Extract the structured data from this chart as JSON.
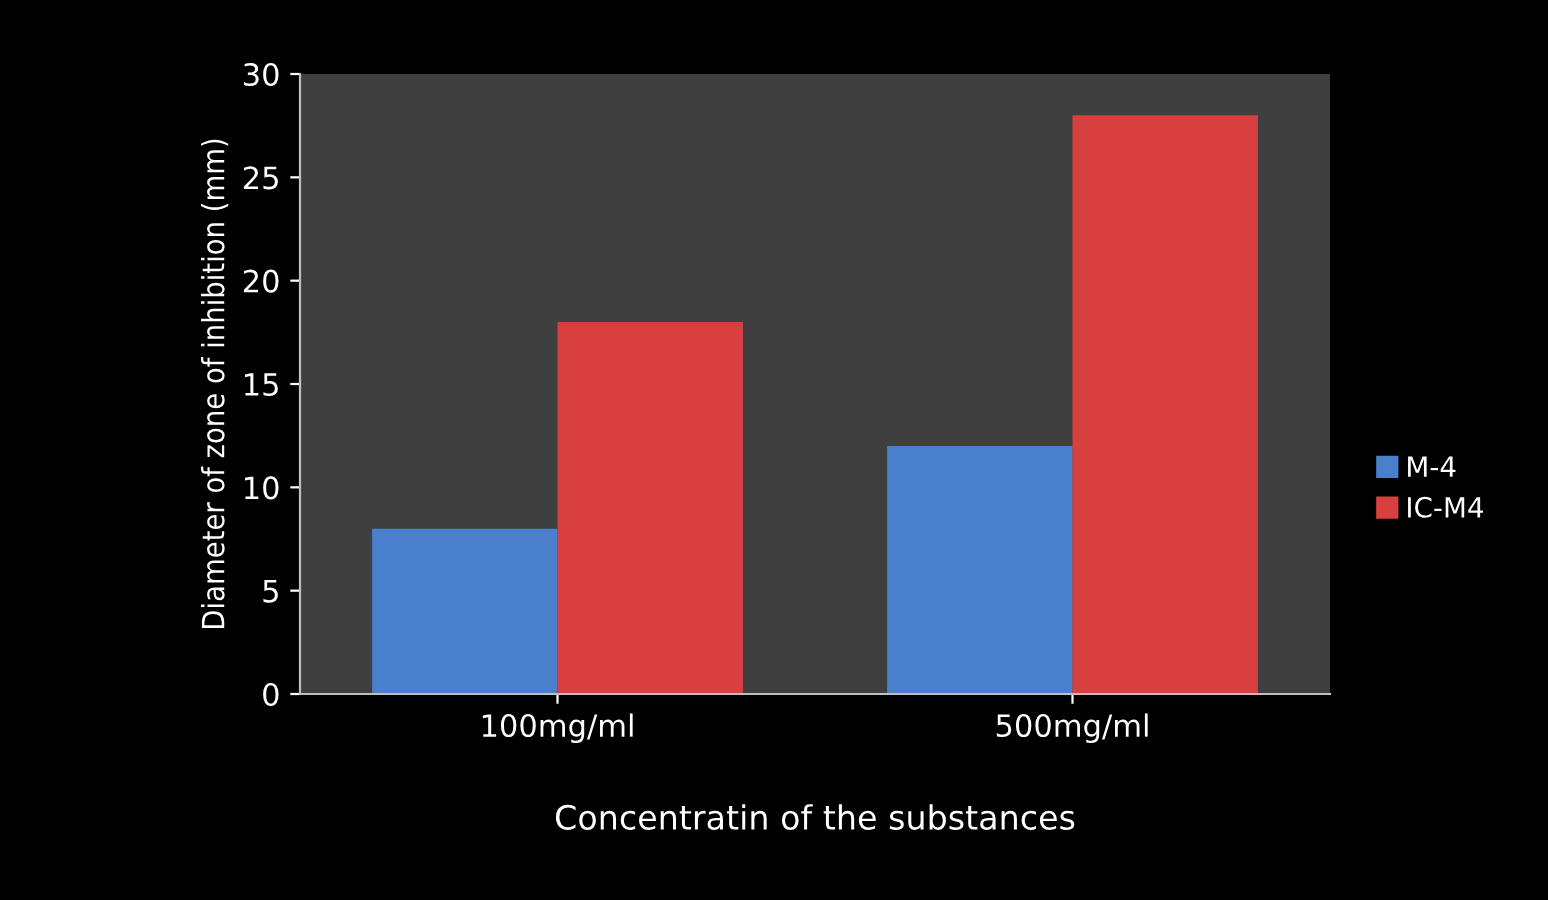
{
  "chart_data": {
    "type": "bar",
    "xlabel": "Concentratin of the substances",
    "ylabel": "Diameter of zone of inhibition (mm)",
    "categories": [
      "100mg/ml",
      "500mg/ml"
    ],
    "series": [
      {
        "name": "M-4",
        "color": "#4a7fcc",
        "values": [
          8,
          12
        ]
      },
      {
        "name": "IC-M4",
        "color": "#d84040",
        "values": [
          18,
          28
        ]
      }
    ],
    "ylim": [
      0,
      30
    ],
    "yticks": [
      0,
      5,
      10,
      15,
      20,
      25,
      30
    ],
    "grid": false,
    "legend": "right"
  }
}
